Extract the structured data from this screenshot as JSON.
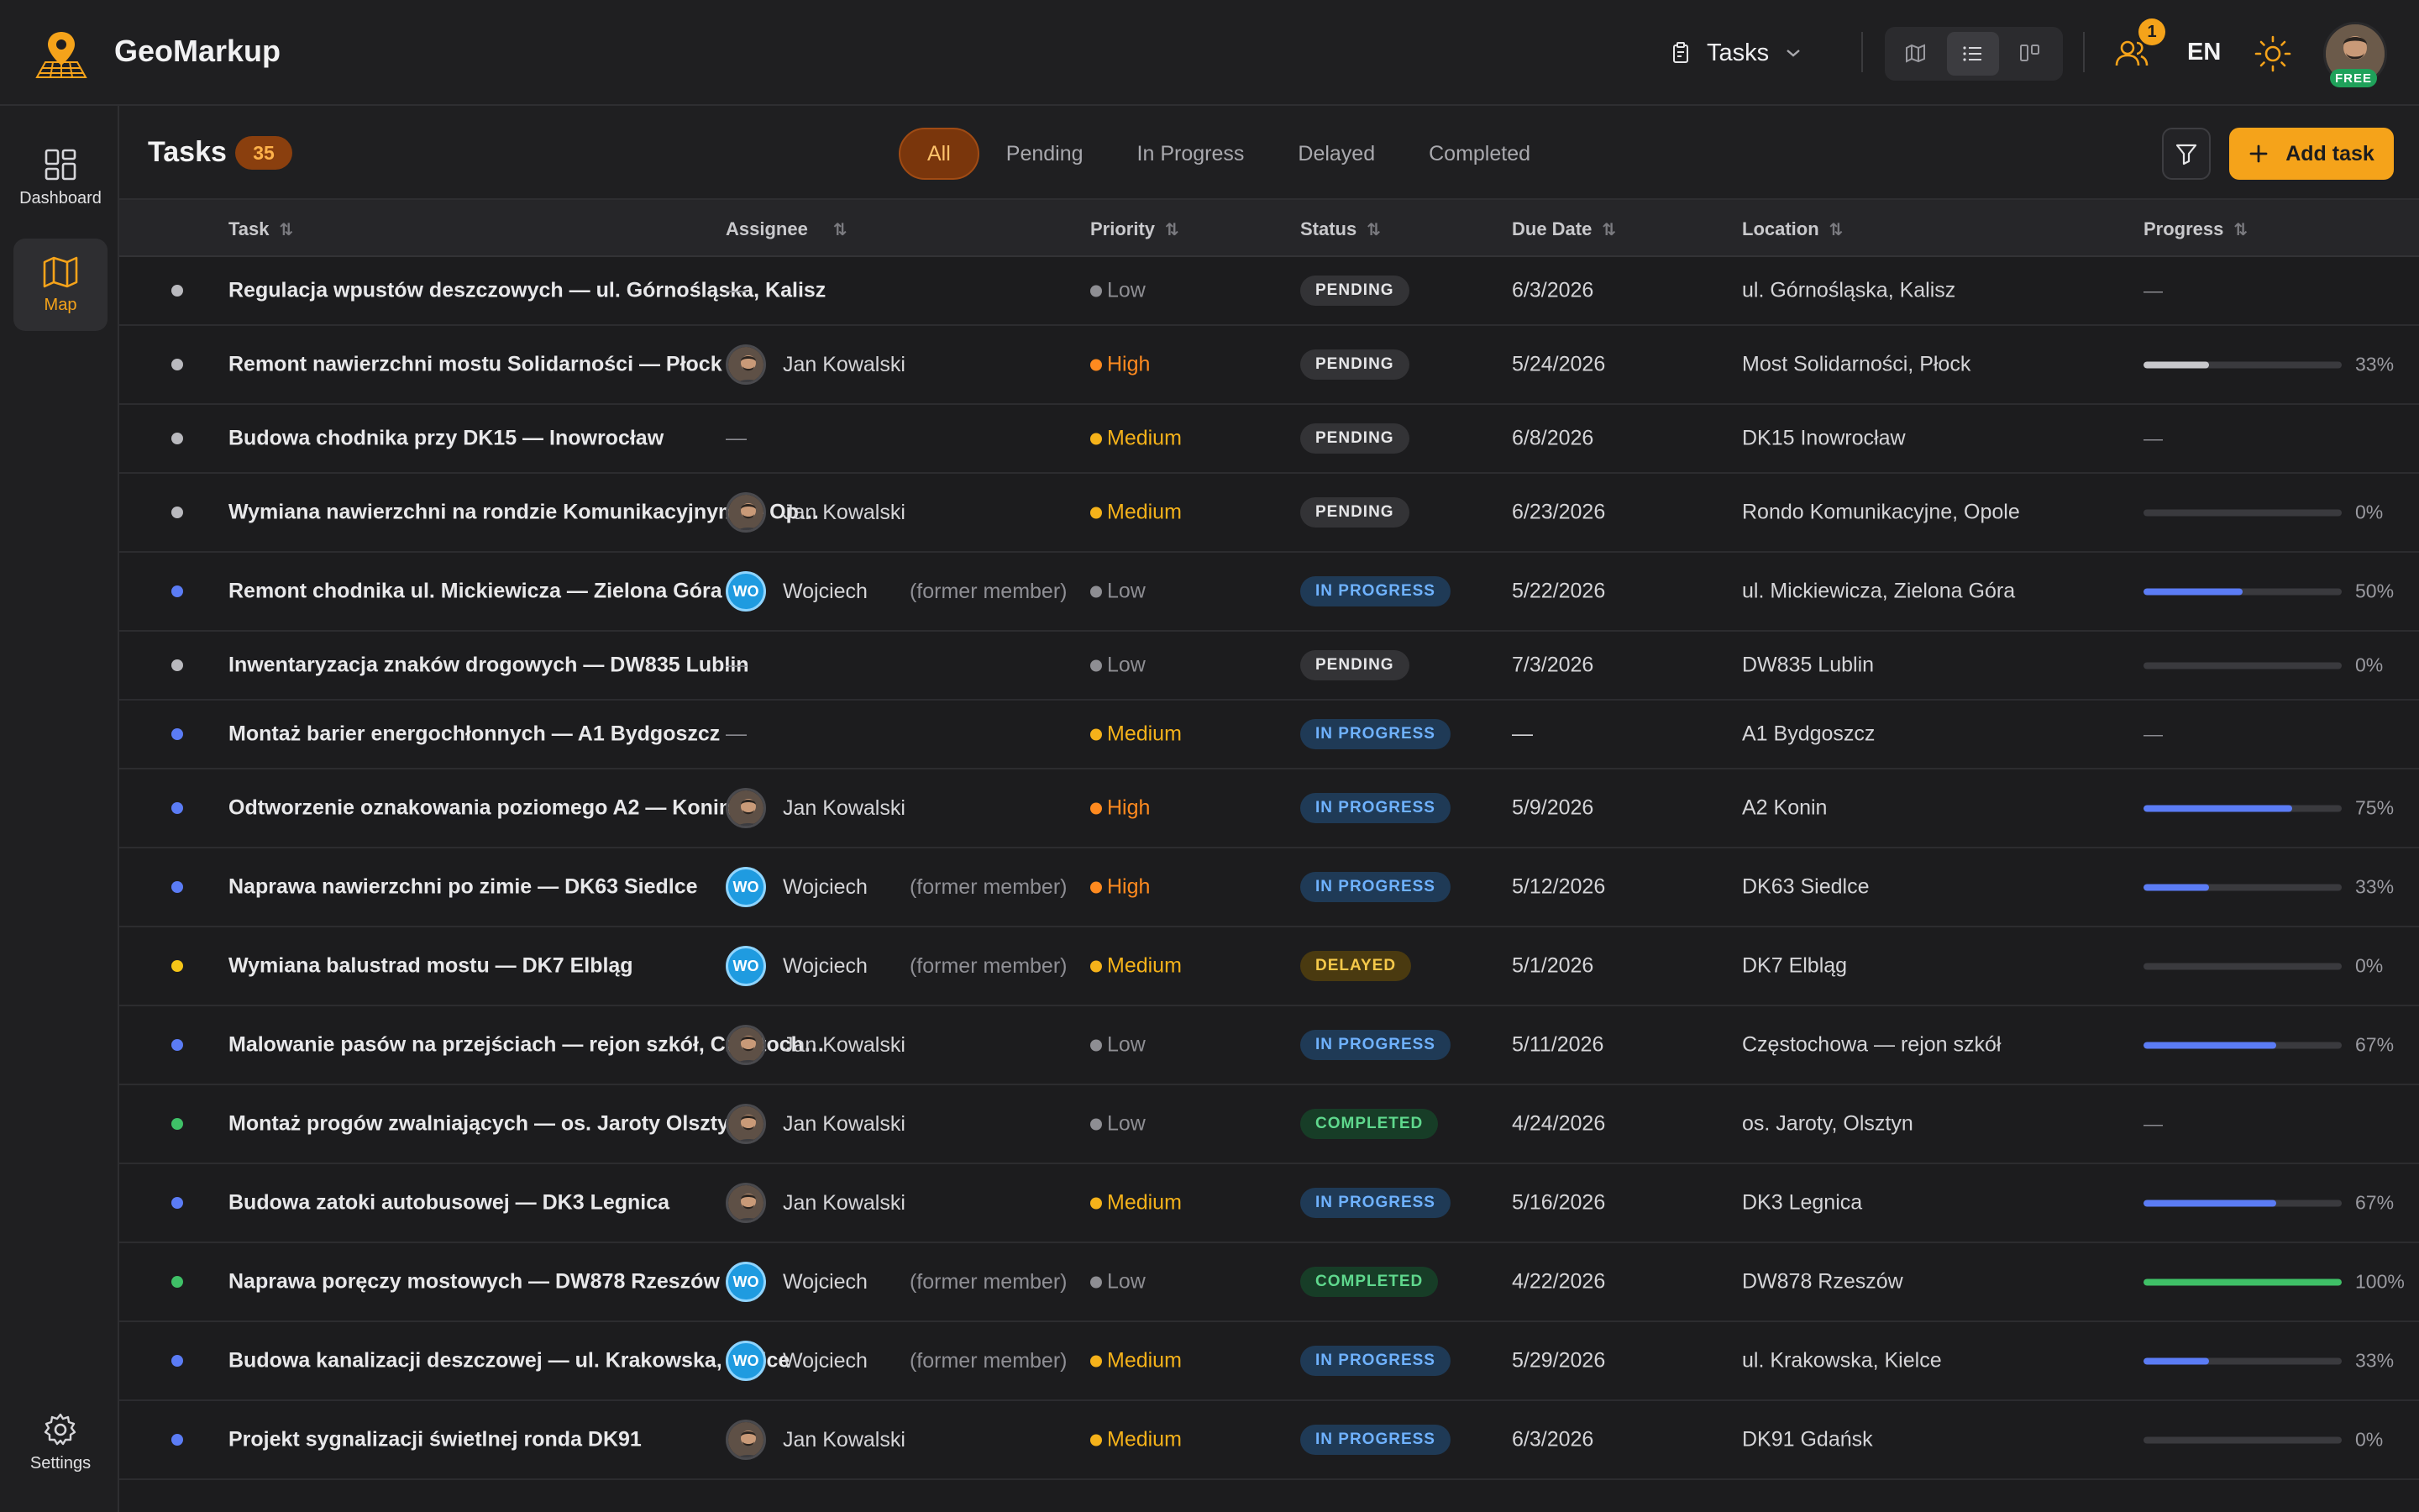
{
  "app": {
    "name": "GeoMarkup"
  },
  "topbar": {
    "section_label": "Tasks",
    "team_badge": "1",
    "language": "EN",
    "plan_badge": "FREE"
  },
  "sidebar": {
    "items": [
      {
        "label": "Dashboard",
        "icon": "dashboard-icon"
      },
      {
        "label": "Map",
        "icon": "map-icon",
        "active": true
      },
      {
        "label": "Settings",
        "icon": "gear-icon"
      }
    ]
  },
  "header": {
    "title": "Tasks",
    "count": "35",
    "filters": [
      "All",
      "Pending",
      "In Progress",
      "Delayed",
      "Completed"
    ],
    "active_filter": "All",
    "add_label": "Add task"
  },
  "table": {
    "columns": [
      "Task",
      "Assignee",
      "Priority",
      "Status",
      "Due Date",
      "Location",
      "Progress"
    ],
    "rows": [
      {
        "task": "Regulacja wpustów deszczowych — ul. Górnośląska, Kalisz",
        "assignee": "",
        "avatar": "",
        "former": "",
        "priority": "Low",
        "status": "PENDING",
        "due": "6/3/2026",
        "location": "ul. Górnośląska, Kalisz",
        "progress": null
      },
      {
        "task": "Remont nawierzchni mostu Solidarności — Płock",
        "assignee": "Jan Kowalski",
        "avatar": "photo",
        "former": "",
        "priority": "High",
        "status": "PENDING",
        "due": "5/24/2026",
        "location": "Most Solidarności, Płock",
        "progress": 33
      },
      {
        "task": "Budowa chodnika przy DK15 — Inowrocław",
        "assignee": "",
        "avatar": "",
        "former": "",
        "priority": "Medium",
        "status": "PENDING",
        "due": "6/8/2026",
        "location": "DK15 Inowrocław",
        "progress": null
      },
      {
        "task": "Wymiana nawierzchni na rondzie Komunikacyjnym — Opole",
        "assignee": "Jan Kowalski",
        "avatar": "photo",
        "former": "",
        "priority": "Medium",
        "status": "PENDING",
        "due": "6/23/2026",
        "location": "Rondo Komunikacyjne, Opole",
        "progress": 0
      },
      {
        "task": "Remont chodnika ul. Mickiewicza — Zielona Góra",
        "assignee": "Wojciech",
        "avatar": "WO",
        "former": "(former member)",
        "priority": "Low",
        "status": "IN PROGRESS",
        "due": "5/22/2026",
        "location": "ul. Mickiewicza, Zielona Góra",
        "progress": 50
      },
      {
        "task": "Inwentaryzacja znaków drogowych — DW835 Lublin",
        "assignee": "",
        "avatar": "",
        "former": "",
        "priority": "Low",
        "status": "PENDING",
        "due": "7/3/2026",
        "location": "DW835 Lublin",
        "progress": 0
      },
      {
        "task": "Montaż barier energochłonnych — A1 Bydgoszcz",
        "assignee": "",
        "avatar": "",
        "former": "",
        "priority": "Medium",
        "status": "IN PROGRESS",
        "due": "",
        "location": "A1 Bydgoszcz",
        "progress": null
      },
      {
        "task": "Odtworzenie oznakowania poziomego A2 — Konin",
        "assignee": "Jan Kowalski",
        "avatar": "photo",
        "former": "",
        "priority": "High",
        "status": "IN PROGRESS",
        "due": "5/9/2026",
        "location": "A2 Konin",
        "progress": 75
      },
      {
        "task": "Naprawa nawierzchni po zimie — DK63 Siedlce",
        "assignee": "Wojciech",
        "avatar": "WO",
        "former": "(former member)",
        "priority": "High",
        "status": "IN PROGRESS",
        "due": "5/12/2026",
        "location": "DK63 Siedlce",
        "progress": 33
      },
      {
        "task": "Wymiana balustrad mostu — DK7 Elbląg",
        "assignee": "Wojciech",
        "avatar": "WO",
        "former": "(former member)",
        "priority": "Medium",
        "status": "DELAYED",
        "due": "5/1/2026",
        "location": "DK7 Elbląg",
        "progress": 0
      },
      {
        "task": "Malowanie pasów na przejściach — rejon szkół, Częstochowa",
        "assignee": "Jan Kowalski",
        "avatar": "photo",
        "former": "",
        "priority": "Low",
        "status": "IN PROGRESS",
        "due": "5/11/2026",
        "location": "Częstochowa — rejon szkół",
        "progress": 67
      },
      {
        "task": "Montaż progów zwalniających — os. Jaroty Olsztyn",
        "assignee": "Jan Kowalski",
        "avatar": "photo",
        "former": "",
        "priority": "Low",
        "status": "COMPLETED",
        "due": "4/24/2026",
        "location": "os. Jaroty, Olsztyn",
        "progress": null
      },
      {
        "task": "Budowa zatoki autobusowej — DK3 Legnica",
        "assignee": "Jan Kowalski",
        "avatar": "photo",
        "former": "",
        "priority": "Medium",
        "status": "IN PROGRESS",
        "due": "5/16/2026",
        "location": "DK3 Legnica",
        "progress": 67
      },
      {
        "task": "Naprawa poręczy mostowych — DW878 Rzeszów",
        "assignee": "Wojciech",
        "avatar": "WO",
        "former": "(former member)",
        "priority": "Low",
        "status": "COMPLETED",
        "due": "4/22/2026",
        "location": "DW878 Rzeszów",
        "progress": 100
      },
      {
        "task": "Budowa kanalizacji deszczowej — ul. Krakowska, Kielce",
        "assignee": "Wojciech",
        "avatar": "WO",
        "former": "(former member)",
        "priority": "Medium",
        "status": "IN PROGRESS",
        "due": "5/29/2026",
        "location": "ul. Krakowska, Kielce",
        "progress": 33
      },
      {
        "task": "Projekt sygnalizacji świetlnej ronda DK91",
        "assignee": "Jan Kowalski",
        "avatar": "photo",
        "former": "",
        "priority": "Medium",
        "status": "IN PROGRESS",
        "due": "6/3/2026",
        "location": "DK91 Gdańsk",
        "progress": 0
      }
    ]
  },
  "colors": {
    "accent": "#f5a31a",
    "status_pending": "#b9b9be",
    "status_in_progress": "#5b7cf5",
    "status_delayed": "#f5c518",
    "status_completed": "#3fc067",
    "priority_low": "#8e8e93",
    "priority_medium": "#f5b21a",
    "priority_high": "#ff8a1f"
  }
}
